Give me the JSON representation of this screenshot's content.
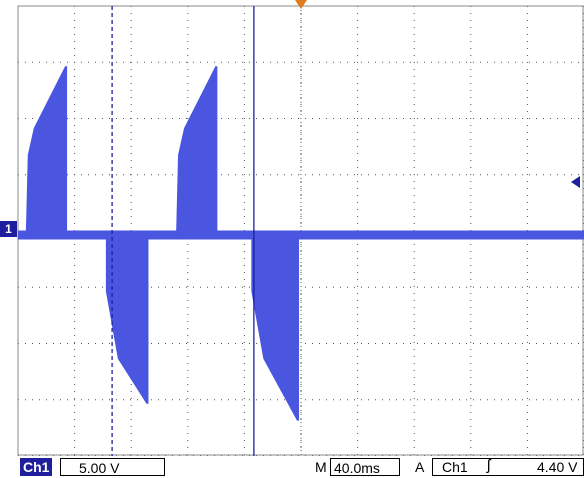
{
  "colors": {
    "trace": "#4a55e0",
    "cursor": "#1f1f9e",
    "grid": "#555555",
    "trigger_marker": "#e07b1e",
    "channel_tag": "#1f1f9e"
  },
  "channel_marker": {
    "label": "1"
  },
  "statusbar": {
    "channel": "Ch1",
    "volts_per_div": "5.00 V",
    "time_prefix": "M",
    "time_per_div": "40.0ms",
    "trigger_mode": "A",
    "trigger_source": "Ch1",
    "trigger_slope_icon": "rising-edge-icon",
    "trigger_slope_glyph": "ʃ",
    "trigger_level": "4.40 V"
  },
  "chart_data": {
    "type": "line",
    "title": "",
    "xlabel": "",
    "ylabel": "",
    "x_divisions": 10,
    "y_divisions": 8,
    "time_per_div_ms": 40.0,
    "volts_per_div": 5.0,
    "xlim_ms": [
      0,
      400
    ],
    "ylim_v": [
      -20,
      20
    ],
    "grid": true,
    "series": [
      {
        "pulses": [
          {
            "start_ms": 5.5,
            "end_ms": 34.7,
            "v_start": 9.5,
            "v_end": 15.0,
            "sign": 1
          },
          {
            "start_ms": 62.1,
            "end_ms": 92.2,
            "v_start": -5.0,
            "v_end": -15.0,
            "sign": -1
          },
          {
            "start_ms": 111.7,
            "end_ms": 140.9,
            "v_start": 9.5,
            "v_end": 15.0,
            "sign": 1
          },
          {
            "start_ms": 164.9,
            "end_ms": 198.6,
            "v_start": -5.0,
            "v_end": -16.5,
            "sign": -1
          }
        ],
        "baseline_v": 0,
        "noise_v": 0.4
      }
    ],
    "cursors_ms": [
      {
        "x_ms": 66.5,
        "style": "dashed"
      },
      {
        "x_ms": 166.7,
        "style": "solid"
      }
    ]
  }
}
